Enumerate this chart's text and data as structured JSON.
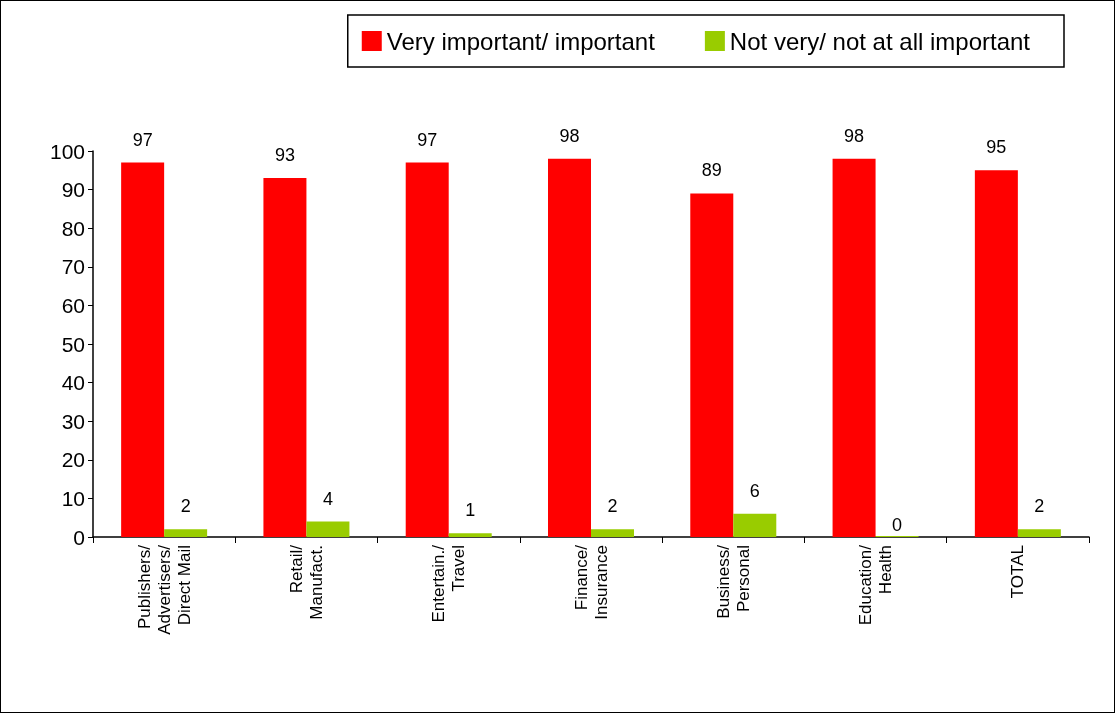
{
  "chart_data": {
    "type": "bar",
    "categories": [
      "Publishers/ Advertisers/ Direct Mail",
      "Retail/ Manufact.",
      "Entertain./ Travel",
      "Finance/ Insurance",
      "Business/ Personal",
      "Education/ Health",
      "TOTAL"
    ],
    "series": [
      {
        "name": "Very important/ important",
        "color": "#ff0000",
        "values": [
          97,
          93,
          97,
          98,
          89,
          98,
          95
        ]
      },
      {
        "name": "Not very/ not at all important",
        "color": "#99cc00",
        "values": [
          2,
          4,
          1,
          2,
          6,
          0,
          2
        ]
      }
    ],
    "ylim": [
      0,
      100
    ],
    "yticks": [
      0,
      10,
      20,
      30,
      40,
      50,
      60,
      70,
      80,
      90,
      100
    ],
    "grid": false,
    "legend": "top right",
    "data_labels": true
  }
}
